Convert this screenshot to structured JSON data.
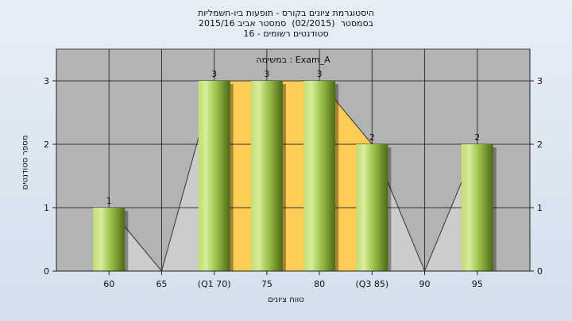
{
  "header": {
    "title_line1": "היסטוגרמת ציונים בקורס - תופעות ביו-חשמליות",
    "title_line2": "בסמסטר  (02/2015)  סמסטר אביב 2015/16",
    "title_line3": "סטודנטים רשומים - 16"
  },
  "chart_data": {
    "type": "bar",
    "annotation": "במשימה : Exam_A",
    "xlabel": "טווח ציונים",
    "ylabel": "מספר סטודנטים",
    "x_ticks": [
      {
        "x": 60,
        "label": "60"
      },
      {
        "x": 65,
        "label": "65"
      },
      {
        "x": 70,
        "label": "(Q1 70)"
      },
      {
        "x": 75,
        "label": "75"
      },
      {
        "x": 80,
        "label": "80"
      },
      {
        "x": 85,
        "label": "(Q3 85)"
      },
      {
        "x": 90,
        "label": "90"
      },
      {
        "x": 95,
        "label": "95"
      }
    ],
    "xlim": [
      55,
      100
    ],
    "ylim": [
      0,
      3.5
    ],
    "y_ticks": [
      0,
      1,
      2,
      3
    ],
    "bars": [
      {
        "x": 60,
        "value": 1,
        "label": "1"
      },
      {
        "x": 70,
        "value": 3,
        "label": "3"
      },
      {
        "x": 75,
        "value": 3,
        "label": "3"
      },
      {
        "x": 80,
        "value": 3,
        "label": "3"
      },
      {
        "x": 85,
        "value": 2,
        "label": "2"
      },
      {
        "x": 95,
        "value": 2,
        "label": "2"
      }
    ],
    "frequency_polygon": [
      [
        60,
        1
      ],
      [
        65,
        0
      ],
      [
        70,
        3
      ],
      [
        75,
        3
      ],
      [
        80,
        3
      ],
      [
        85,
        2
      ],
      [
        90,
        0
      ],
      [
        95,
        2
      ]
    ],
    "quartile_range": [
      70,
      85
    ],
    "grid": true,
    "colors": {
      "plot_background": "#b3b3b3",
      "polygon_fill": "#cccccc",
      "iqr_fill": "#ffcc55",
      "bar_light": "#d8ec9a",
      "bar_mid": "#9cc24a",
      "bar_dark": "#4c6a14",
      "grid": "#333333"
    }
  }
}
